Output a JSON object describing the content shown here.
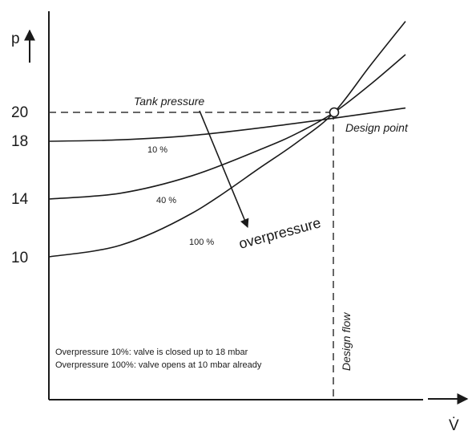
{
  "chart_data": {
    "type": "line",
    "title": "",
    "xlabel": "V̇",
    "ylabel": "p",
    "ylim": [
      0,
      29
    ],
    "xlim": [
      0,
      10
    ],
    "y_ticks": [
      {
        "value": 10,
        "label": "10"
      },
      {
        "value": 14,
        "label": "14"
      },
      {
        "value": 18,
        "label": "18"
      },
      {
        "value": 20,
        "label": "20"
      }
    ],
    "series": [
      {
        "name": "10 %",
        "x": [
          0,
          2,
          4,
          6,
          8,
          10
        ],
        "y": [
          18,
          18.1,
          18.4,
          18.95,
          19.6,
          20.3
        ]
      },
      {
        "name": "40 %",
        "x": [
          0,
          2,
          4,
          6,
          7,
          8,
          9,
          10
        ],
        "y": [
          14,
          14.4,
          15.6,
          17.5,
          18.6,
          20.0,
          21.9,
          24.0
        ]
      },
      {
        "name": "100 %",
        "x": [
          0,
          2,
          4,
          6,
          7,
          8,
          9,
          10
        ],
        "y": [
          10,
          10.8,
          13.0,
          16.3,
          18.0,
          20.0,
          23.2,
          26.3
        ]
      }
    ],
    "design_point": {
      "x": 8,
      "y": 20
    },
    "annotations": {
      "tank_pressure": "Tank pressure",
      "design_point": "Design point",
      "overpressure": "overpressure",
      "design_flow": "Design flow",
      "note_line1": "Overpressure 10%: valve is closed up to 18 mbar",
      "note_line2": "Overpressure 100%: valve opens at 10 mbar already"
    }
  }
}
